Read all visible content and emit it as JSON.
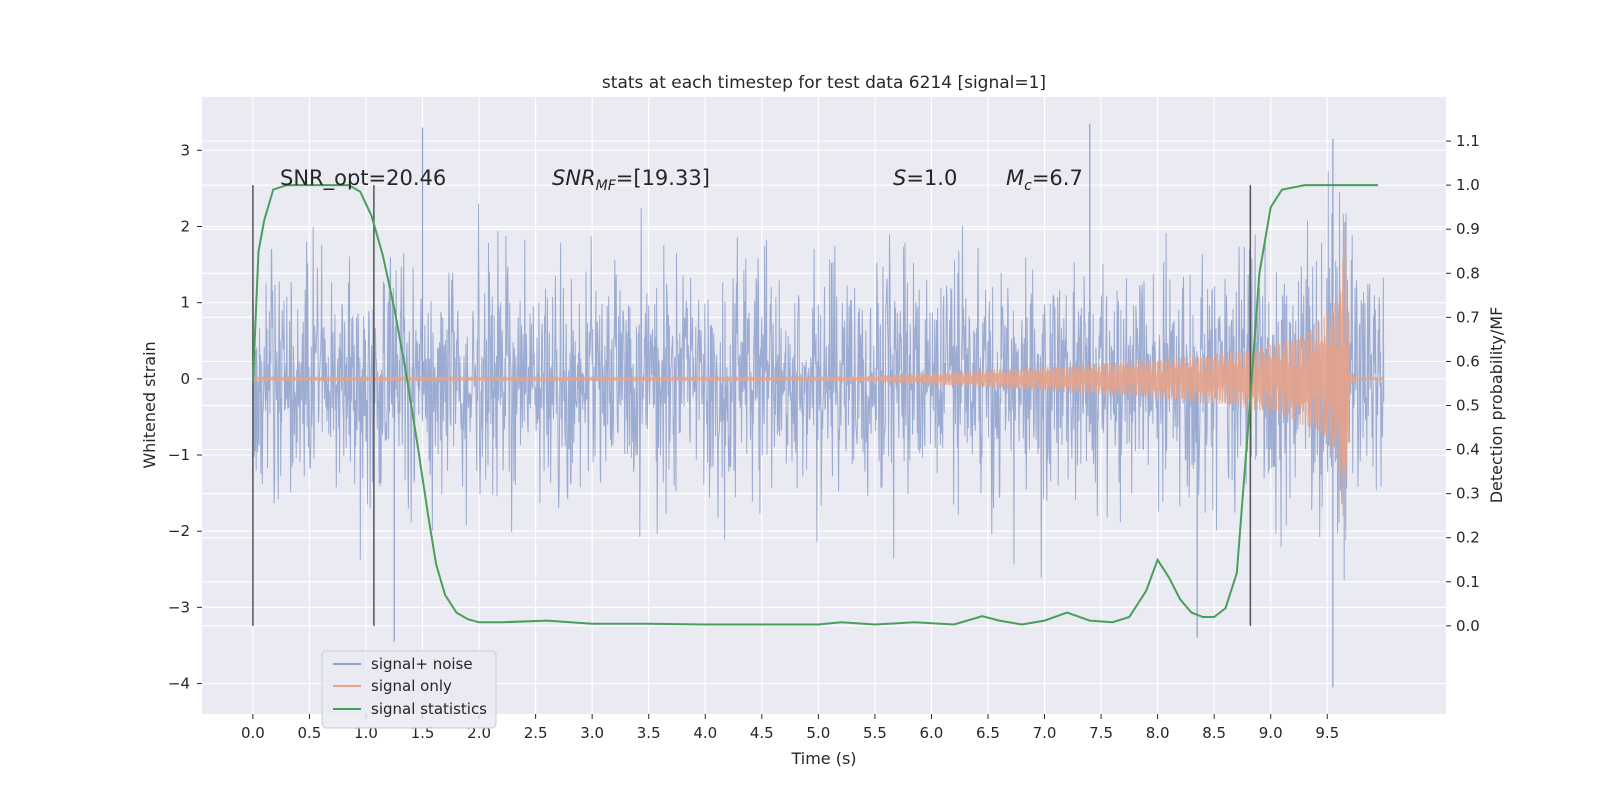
{
  "chart_data": {
    "type": "line",
    "title": "stats at each timestep for test data 6214 [signal=1]",
    "xlabel": "Time (s)",
    "ylabel_left": "Whitened strain",
    "ylabel_right": "Detection probability/MF",
    "xlim": [
      -0.45,
      10.55
    ],
    "ylim_left": [
      -4.4,
      3.7
    ],
    "ylim_right": [
      -0.2,
      1.2
    ],
    "x_ticks": [
      "0.0",
      "0.5",
      "1.0",
      "1.5",
      "2.0",
      "2.5",
      "3.0",
      "3.5",
      "4.0",
      "4.5",
      "5.0",
      "5.5",
      "6.0",
      "6.5",
      "7.0",
      "7.5",
      "8.0",
      "8.5",
      "9.0",
      "9.5"
    ],
    "y_ticks_left": [
      "3",
      "2",
      "1",
      "0",
      "−1",
      "−2",
      "−3",
      "−4"
    ],
    "y_ticks_right": [
      "1.1",
      "1.0",
      "0.9",
      "0.8",
      "0.7",
      "0.6",
      "0.5",
      "0.4",
      "0.3",
      "0.2",
      "0.1",
      "0.0"
    ],
    "grid": true,
    "legend_placement": "lower-left",
    "annotations": {
      "snr_opt": "SNR_opt=20.46",
      "snr_mf_main": "SNR",
      "snr_mf_sub": "MF",
      "snr_mf_rest": "=[19.33]",
      "s_main": "S",
      "s_rest": "=1.0",
      "mc_main": "M",
      "mc_sub": "c",
      "mc_rest": "=6.7"
    },
    "vertical_markers_x": [
      0.0,
      1.07,
      8.82
    ],
    "series": [
      {
        "name": "signal+ noise",
        "color": "#8da0cb",
        "axis": "left",
        "x_range": [
          0.0,
          10.0
        ],
        "envelope_typical": [
          -1.5,
          1.5
        ],
        "notable_peaks": [
          [
            1.5,
            3.3
          ],
          [
            7.4,
            3.35
          ],
          [
            9.55,
            3.15
          ],
          [
            9.55,
            -4.05
          ],
          [
            1.25,
            -3.45
          ],
          [
            8.35,
            -3.4
          ]
        ]
      },
      {
        "name": "signal only",
        "color": "#e5a38a",
        "axis": "left",
        "x": [
          0.0,
          5.0,
          5.5,
          6.0,
          6.5,
          7.0,
          7.5,
          8.0,
          8.5,
          8.8,
          9.0,
          9.2,
          9.4,
          9.55,
          9.62,
          9.66,
          9.7,
          9.75,
          10.0
        ],
        "amplitude": [
          0.03,
          0.03,
          0.04,
          0.08,
          0.12,
          0.16,
          0.21,
          0.26,
          0.33,
          0.39,
          0.45,
          0.54,
          0.7,
          0.95,
          1.3,
          2.3,
          0.1,
          0.02,
          0.02
        ]
      },
      {
        "name": "signal statistics",
        "color": "#4a9e5c",
        "axis": "right",
        "x": [
          0.0,
          0.05,
          0.1,
          0.18,
          0.3,
          0.5,
          0.7,
          0.85,
          0.95,
          1.05,
          1.15,
          1.25,
          1.35,
          1.45,
          1.55,
          1.62,
          1.7,
          1.8,
          1.9,
          2.0,
          2.2,
          2.6,
          3.0,
          3.5,
          4.0,
          4.5,
          5.0,
          5.2,
          5.5,
          5.85,
          6.2,
          6.45,
          6.6,
          6.8,
          7.0,
          7.2,
          7.4,
          7.6,
          7.75,
          7.9,
          8.0,
          8.1,
          8.2,
          8.3,
          8.4,
          8.5,
          8.6,
          8.7,
          8.8,
          8.9,
          9.0,
          9.1,
          9.3,
          9.6,
          9.95
        ],
        "y": [
          0.55,
          0.85,
          0.92,
          0.99,
          1.0,
          1.0,
          1.0,
          1.0,
          0.985,
          0.93,
          0.84,
          0.72,
          0.58,
          0.42,
          0.25,
          0.14,
          0.07,
          0.03,
          0.015,
          0.008,
          0.008,
          0.012,
          0.005,
          0.005,
          0.003,
          0.003,
          0.003,
          0.008,
          0.003,
          0.008,
          0.003,
          0.022,
          0.012,
          0.003,
          0.012,
          0.03,
          0.012,
          0.008,
          0.02,
          0.08,
          0.15,
          0.11,
          0.06,
          0.03,
          0.02,
          0.02,
          0.04,
          0.12,
          0.45,
          0.8,
          0.95,
          0.99,
          1.0,
          1.0,
          1.0
        ]
      }
    ]
  }
}
